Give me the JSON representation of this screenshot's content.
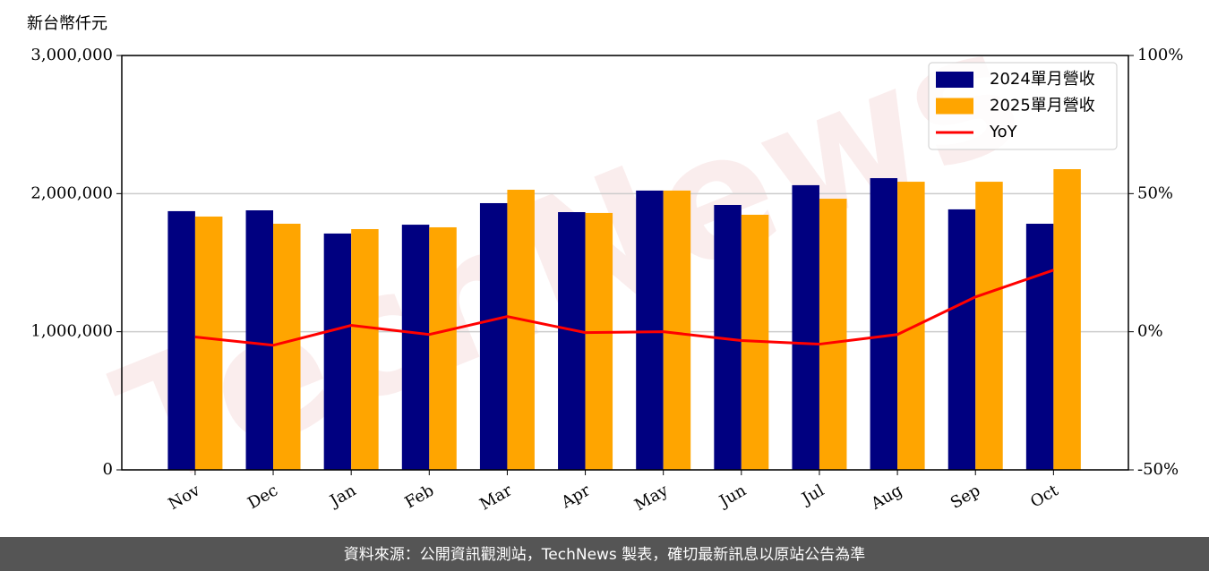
{
  "chart_data": {
    "type": "bar_line",
    "y_label": "新台幣仟元",
    "categories": [
      "Nov",
      "Dec",
      "Jan",
      "Feb",
      "Mar",
      "Apr",
      "May",
      "Jun",
      "Jul",
      "Aug",
      "Sep",
      "Oct"
    ],
    "series": [
      {
        "name": "2024單月營收",
        "color": "#000080",
        "values": [
          1873000,
          1879000,
          1711000,
          1775000,
          1931000,
          1866000,
          2022000,
          1918000,
          2061000,
          2112000,
          1886000,
          1782000
        ]
      },
      {
        "name": "2025單月營收",
        "color": "#ffa500",
        "values": [
          1834000,
          1782000,
          1743000,
          1756000,
          2028000,
          1860000,
          2022000,
          1847000,
          1963000,
          2086000,
          2086000,
          2177000
        ]
      },
      {
        "name": "YoY",
        "color": "#ff0000",
        "axis": "y2",
        "values": [
          -1.9,
          -4.9,
          2.3,
          -1.0,
          5.5,
          -0.3,
          0.0,
          -3.2,
          -4.5,
          -1.0,
          12.6,
          22.3
        ]
      }
    ],
    "ylim": [
      0,
      3000000
    ],
    "yticks": [
      0,
      {
        "value": 1000000,
        "label": "1,000,000"
      },
      {
        "value": 2000000,
        "label": "2,000,000"
      },
      {
        "value": 3000000,
        "label": "3,000,000"
      }
    ],
    "y2lim": [
      -50,
      100
    ],
    "y2ticks": [
      {
        "value": -50,
        "label": "-50%"
      },
      {
        "value": 0,
        "label": "0%"
      },
      {
        "value": 50,
        "label": "50%"
      },
      {
        "value": 100,
        "label": "100%"
      }
    ],
    "grid": true,
    "legend": "upper right",
    "watermark": "TechNews",
    "footer": "資料來源：公開資訊觀測站，TechNews 製表，確切最新訊息以原站公告為準"
  }
}
